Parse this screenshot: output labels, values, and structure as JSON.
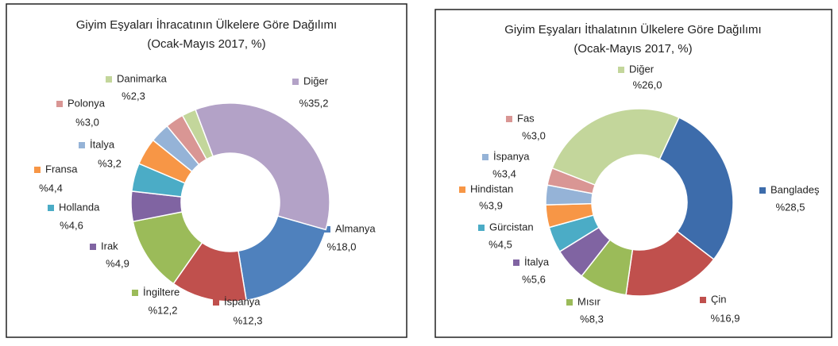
{
  "chart_data": [
    {
      "type": "donut",
      "title": "Giyim Eşyaları İhracatının Ülkelere Göre Dağılımı",
      "subtitle": "(Ocak-Mayıs 2017, %)",
      "categories": [
        "Almanya",
        "İspanya",
        "İngiltere",
        "Irak",
        "Hollanda",
        "Fransa",
        "İtalya",
        "Polonya",
        "Danimarka",
        "Diğer"
      ],
      "values": [
        18.0,
        12.3,
        12.2,
        4.9,
        4.6,
        4.4,
        3.2,
        3.0,
        2.3,
        35.2
      ],
      "value_labels": [
        "%18,0",
        "%12,3",
        "%12,2",
        "%4,9",
        "%4,6",
        "%4,4",
        "%3,2",
        "%3,0",
        "%2,3",
        "%35,2"
      ],
      "colors": [
        "#4f81bd",
        "#c0504d",
        "#9bbb59",
        "#8064a2",
        "#4bacc6",
        "#f79646",
        "#95b3d7",
        "#d99694",
        "#c3d69b",
        "#b3a2c7"
      ]
    },
    {
      "type": "donut",
      "title": "Giyim Eşyaları İthalatının Ülkelere Göre Dağılımı",
      "subtitle": "(Ocak-Mayıs 2017, %)",
      "categories": [
        "Bangladeş",
        "Çin",
        "Mısır",
        "İtalya",
        "Gürcistan",
        "Hindistan",
        "İspanya",
        "Fas",
        "Diğer"
      ],
      "values": [
        28.5,
        16.9,
        8.3,
        5.6,
        4.5,
        3.9,
        3.4,
        3.0,
        26.0
      ],
      "value_labels": [
        "%28,5",
        "%16,9",
        "%8,3",
        "%5,6",
        "%4,5",
        "%3,9",
        "%3,4",
        "%3,0",
        "%26,0"
      ],
      "colors": [
        "#3d6cab",
        "#c0504d",
        "#9bbb59",
        "#8064a2",
        "#4bacc6",
        "#f79646",
        "#95b3d7",
        "#d99694",
        "#c3d69b"
      ]
    }
  ]
}
